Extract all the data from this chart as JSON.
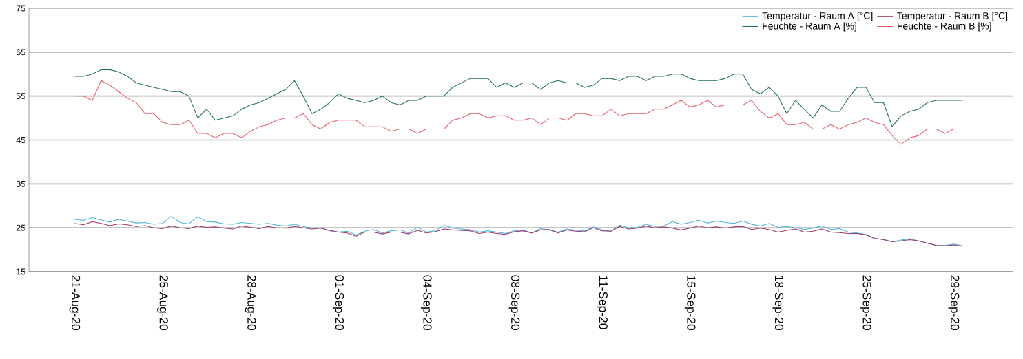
{
  "chart_data": {
    "type": "line",
    "categories": [
      "21-Aug-20",
      null,
      null,
      null,
      null,
      null,
      null,
      null,
      null,
      null,
      "25-Aug-20",
      null,
      null,
      null,
      null,
      null,
      null,
      null,
      null,
      null,
      "28-Aug-20",
      null,
      null,
      null,
      null,
      null,
      null,
      null,
      null,
      null,
      "01-Sep-20",
      null,
      null,
      null,
      null,
      null,
      null,
      null,
      null,
      null,
      "04-Sep-20",
      null,
      null,
      null,
      null,
      null,
      null,
      null,
      null,
      null,
      "08-Sep-20",
      null,
      null,
      null,
      null,
      null,
      null,
      null,
      null,
      null,
      "11-Sep-20",
      null,
      null,
      null,
      null,
      null,
      null,
      null,
      null,
      null,
      "15-Sep-20",
      null,
      null,
      null,
      null,
      null,
      null,
      null,
      null,
      null,
      "18-Sep-20",
      null,
      null,
      null,
      null,
      null,
      null,
      null,
      null,
      null,
      "25-Sep-20",
      null,
      null,
      null,
      null,
      null,
      null,
      null,
      null,
      null,
      "29-Sep-20",
      null
    ],
    "series": [
      {
        "name": "Temperatur - Raum A [°C]",
        "color": "#4fb3d9",
        "values": [
          26.9,
          26.7,
          27.3,
          26.8,
          26.3,
          26.9,
          26.5,
          26.1,
          26.2,
          25.8,
          26.0,
          27.6,
          26.2,
          25.9,
          27.5,
          26.4,
          26.3,
          25.9,
          25.8,
          26.2,
          26.0,
          25.8,
          26.0,
          25.6,
          25.4,
          25.8,
          25.3,
          24.9,
          25.0,
          24.3,
          24.0,
          24.2,
          23.4,
          24.2,
          24.6,
          23.8,
          24.3,
          24.5,
          23.8,
          25.1,
          24.0,
          24.3,
          25.6,
          24.9,
          24.7,
          24.5,
          24.0,
          24.3,
          24.0,
          23.7,
          24.3,
          24.5,
          23.8,
          24.8,
          24.5,
          24.0,
          24.7,
          24.4,
          24.3,
          25.2,
          24.5,
          24.2,
          25.6,
          25.0,
          25.1,
          25.8,
          25.3,
          25.4,
          26.4,
          25.8,
          26.2,
          26.7,
          26.1,
          26.5,
          26.2,
          26.0,
          26.5,
          25.8,
          25.4,
          26.0,
          25.1,
          25.3,
          25.0,
          24.6,
          24.9,
          25.4,
          24.6,
          24.8,
          24.0,
          23.8,
          23.5,
          22.5,
          22.4,
          21.8,
          22.2,
          22.5,
          22.0,
          21.5,
          21.0,
          21.0,
          21.3,
          20.9
        ]
      },
      {
        "name": "Temperatur - Raum B [°C]",
        "color": "#9b3a6e",
        "values": [
          26.0,
          25.7,
          26.4,
          26.0,
          25.5,
          25.9,
          25.7,
          25.3,
          25.5,
          25.0,
          24.8,
          25.4,
          25.0,
          24.8,
          25.4,
          25.1,
          25.2,
          24.9,
          24.7,
          25.4,
          25.1,
          24.8,
          25.3,
          25.0,
          24.9,
          25.3,
          25.0,
          24.7,
          24.9,
          24.4,
          24.0,
          23.8,
          23.1,
          24.0,
          24.0,
          23.6,
          24.0,
          24.0,
          23.6,
          24.4,
          23.8,
          24.1,
          24.7,
          24.5,
          24.4,
          24.3,
          23.7,
          24.0,
          23.7,
          23.5,
          24.1,
          24.3,
          23.8,
          24.5,
          24.6,
          23.8,
          24.5,
          24.2,
          24.1,
          25.0,
          24.3,
          24.2,
          25.3,
          24.7,
          24.9,
          25.4,
          25.0,
          25.2,
          24.9,
          24.5,
          24.9,
          25.4,
          25.0,
          25.2,
          24.9,
          25.2,
          25.3,
          24.6,
          24.9,
          24.6,
          24.0,
          24.4,
          24.7,
          24.0,
          24.2,
          24.7,
          24.0,
          23.9,
          23.7,
          23.7,
          23.4,
          22.6,
          22.3,
          21.8,
          22.0,
          22.3,
          22.0,
          21.5,
          21.0,
          20.9,
          21.1,
          20.8
        ]
      },
      {
        "name": "Feuchte - Raum A [%]",
        "color": "#1f6e5f",
        "values": [
          59.5,
          59.5,
          60,
          61,
          61,
          60.5,
          59.5,
          58,
          57.5,
          57,
          56.5,
          56,
          56,
          55,
          50,
          52,
          49.5,
          50,
          50.5,
          52,
          53,
          53.5,
          54.5,
          55.5,
          56.5,
          58.5,
          55,
          51,
          52,
          53.5,
          55.5,
          54.5,
          54,
          53.5,
          54,
          55,
          53.5,
          53,
          54,
          54,
          55,
          55,
          55,
          57,
          58,
          59,
          59,
          59,
          57,
          58,
          57,
          58,
          58,
          56.5,
          58,
          58.5,
          58,
          58,
          57,
          57.5,
          59,
          59,
          58.5,
          59.5,
          59.5,
          58.5,
          59.5,
          59.5,
          60,
          60,
          59,
          58.5,
          58.5,
          58.5,
          59,
          60,
          60,
          56.5,
          55.5,
          57,
          55,
          51,
          54,
          52,
          50,
          53,
          51.5,
          51.5,
          54.5,
          57,
          57,
          53.5,
          53.5,
          48,
          50.5,
          51.5,
          52,
          53.5,
          54,
          54,
          54,
          54
        ]
      },
      {
        "name": "Feuchte - Raum B [%]",
        "color": "#e6606a",
        "values": [
          55,
          55,
          54,
          58.5,
          57.5,
          56,
          54.5,
          53.5,
          51,
          51,
          49,
          48.5,
          48.5,
          49.5,
          46.5,
          46.5,
          45.5,
          46.5,
          46.5,
          45.5,
          47,
          48,
          48.5,
          49.5,
          50,
          50,
          51,
          48.5,
          47.5,
          49,
          49.5,
          49.5,
          49.5,
          48,
          48,
          48,
          47,
          47.5,
          47.5,
          46.5,
          47.5,
          47.5,
          47.5,
          49.5,
          50,
          51,
          51,
          50,
          50.5,
          50.5,
          49.5,
          49.5,
          50,
          48.5,
          50,
          50,
          49.5,
          51,
          51,
          50.5,
          50.5,
          52,
          50.5,
          51,
          51,
          51,
          52,
          52,
          53,
          54,
          52.5,
          53,
          54,
          52.5,
          53,
          53,
          53,
          54,
          51.5,
          50,
          51,
          48.5,
          48.5,
          49,
          47.5,
          47.5,
          48.5,
          47.5,
          48.5,
          49,
          50,
          49,
          48.5,
          46,
          44,
          45.5,
          46,
          47.5,
          47.5,
          46.5,
          47.5,
          47.5
        ]
      }
    ],
    "ylim": [
      15,
      75
    ],
    "yticks": [
      15,
      25,
      35,
      45,
      55,
      65,
      75
    ],
    "grid": "y",
    "legend": "top right"
  }
}
